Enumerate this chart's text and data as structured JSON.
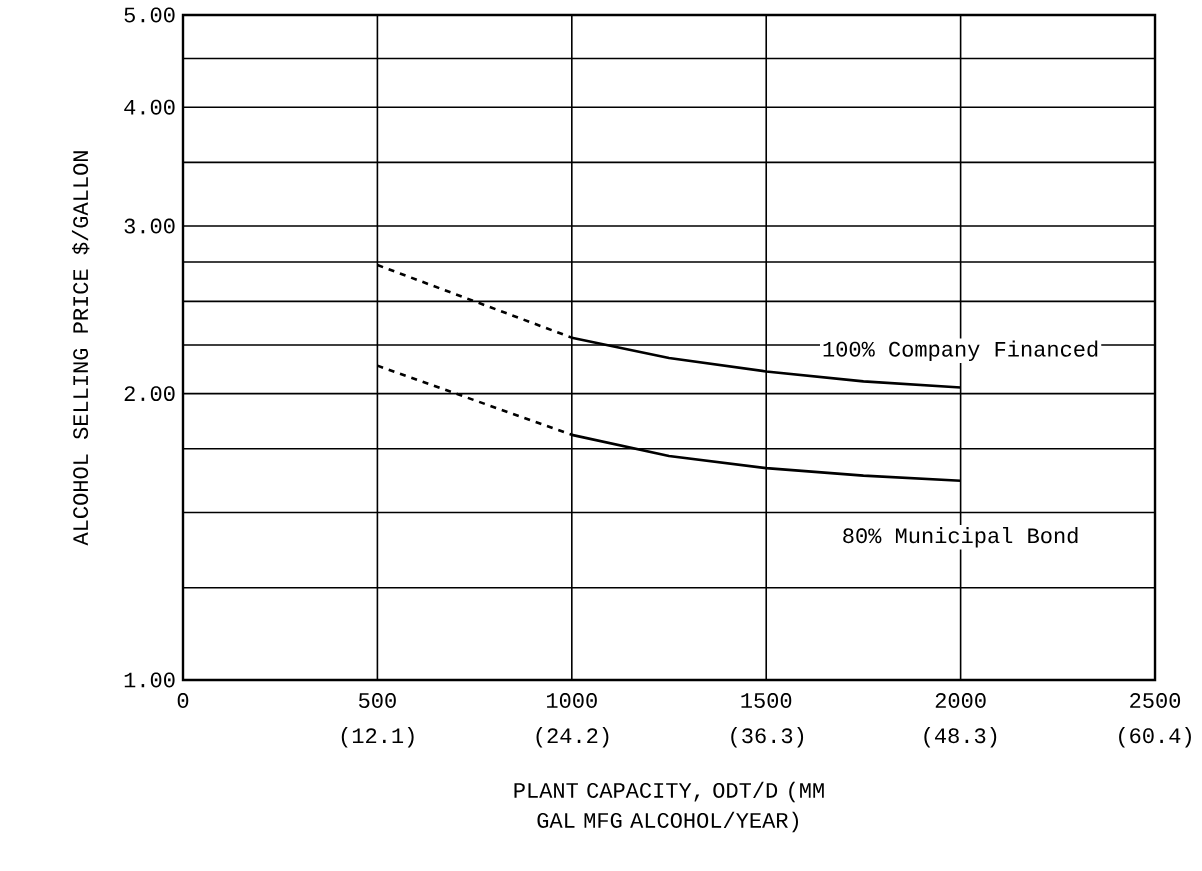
{
  "chart_data": {
    "type": "line",
    "xlabel": "PLANT CAPACITY, ODT/D (MM GAL MFG ALCOHOL/YEAR)",
    "ylabel": "ALCOHOL SELLING PRICE $/GALLON",
    "log": "y",
    "grid": true,
    "legend": false,
    "marker": "none",
    "xlim": [
      0,
      2500
    ],
    "ylim": [
      1,
      5
    ],
    "xticks": [
      0,
      500,
      1000,
      1500,
      2000,
      2500
    ],
    "x2lim": [
      0,
      60.4
    ],
    "x2ticks": [
      {
        "value": 12.1,
        "label": "(12.1)"
      },
      {
        "value": 24.2,
        "label": "(24.2)"
      },
      {
        "value": 36.3,
        "label": "(36.3)"
      },
      {
        "value": 48.3,
        "label": "(48.3)"
      },
      {
        "value": 60.4,
        "label": "(60.4)"
      }
    ],
    "yticks": [
      {
        "value": 1,
        "label": "1.00"
      },
      {
        "value": 1.25,
        "label": null
      },
      {
        "value": 1.5,
        "label": null
      },
      {
        "value": 1.75,
        "label": null
      },
      {
        "value": 2,
        "label": "2.00"
      },
      {
        "value": 2.25,
        "label": null
      },
      {
        "value": 2.5,
        "label": null
      },
      {
        "value": 2.75,
        "label": null
      },
      {
        "value": 3,
        "label": "3.00"
      },
      {
        "value": 3.5,
        "label": null
      },
      {
        "value": 4,
        "label": "4.00"
      },
      {
        "value": 4.5,
        "label": null
      },
      {
        "value": 5,
        "label": "5.00"
      }
    ],
    "series": [
      {
        "color": "#000000",
        "line_style": "dashed",
        "x": [
          500,
          1000
        ],
        "values": [
          2.73,
          2.29
        ]
      },
      {
        "name": "100% Company Financed",
        "color": "#000000",
        "line_style": "solid",
        "x": [
          1000,
          1250,
          1500,
          1750,
          2000
        ],
        "values": [
          2.29,
          2.18,
          2.11,
          2.06,
          2.03
        ]
      },
      {
        "color": "#000000",
        "line_style": "dashed",
        "x": [
          500,
          1000
        ],
        "values": [
          2.14,
          1.81
        ]
      },
      {
        "name": "80% Municipal Bond",
        "color": "#000000",
        "line_style": "solid",
        "x": [
          1000,
          1250,
          1500,
          1750,
          2000
        ],
        "values": [
          1.81,
          1.72,
          1.67,
          1.64,
          1.62
        ]
      }
    ]
  }
}
